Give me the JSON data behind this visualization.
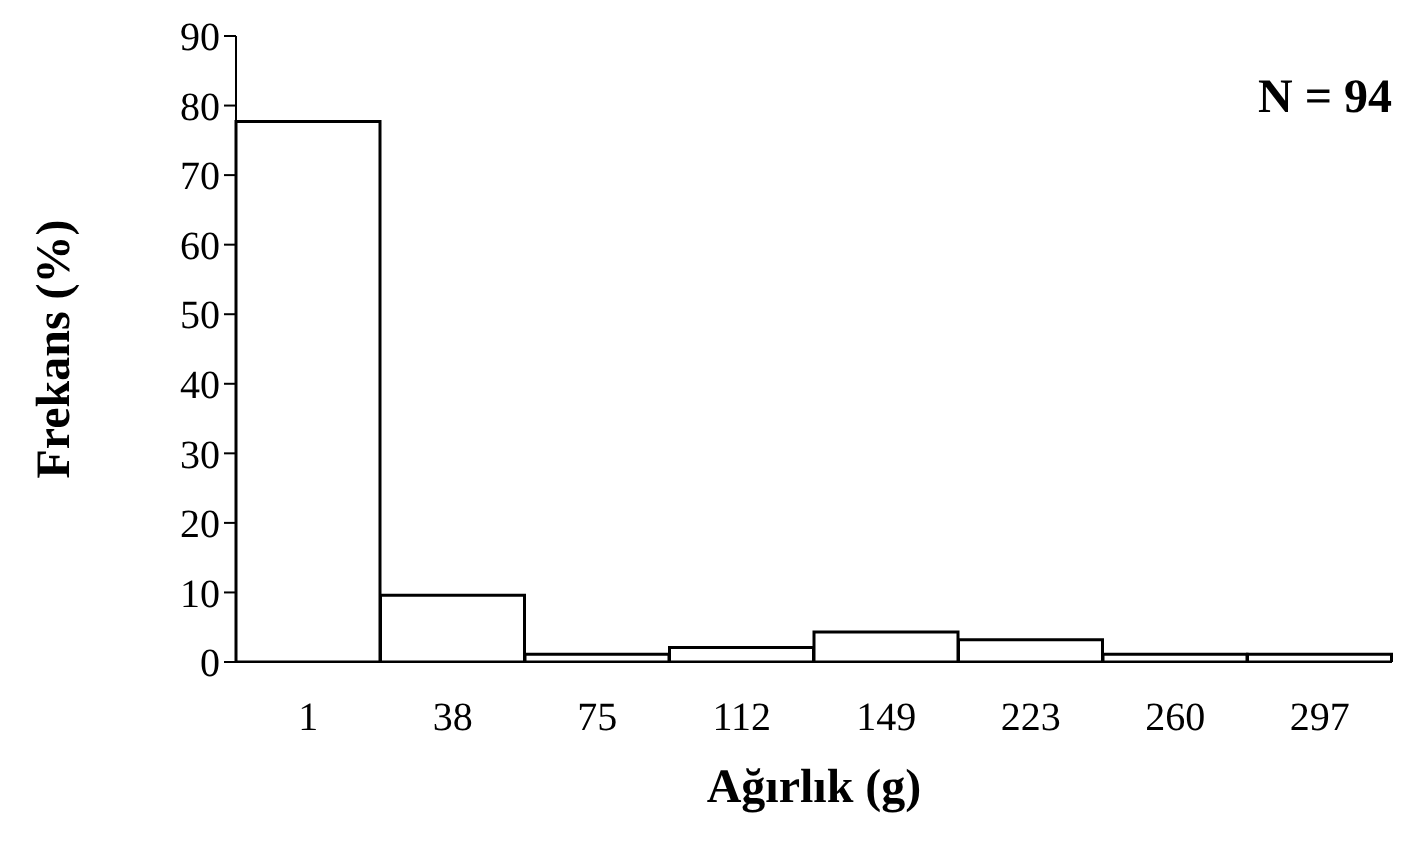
{
  "chart_data": {
    "type": "bar",
    "xlabel": "Ağırlık (g)",
    "ylabel": "Frekans (%)",
    "categories": [
      "1",
      "38",
      "75",
      "112",
      "149",
      "223",
      "260",
      "297"
    ],
    "values": [
      77.7,
      9.6,
      1.1,
      2.1,
      4.3,
      3.2,
      1.1,
      1.1
    ],
    "color": "#ffffff",
    "ylim": [
      0,
      90
    ],
    "yticks": [
      0,
      10,
      20,
      30,
      40,
      50,
      60,
      70,
      80,
      90
    ],
    "grid": false,
    "legend": false,
    "annotations": [
      "N = 94"
    ]
  }
}
